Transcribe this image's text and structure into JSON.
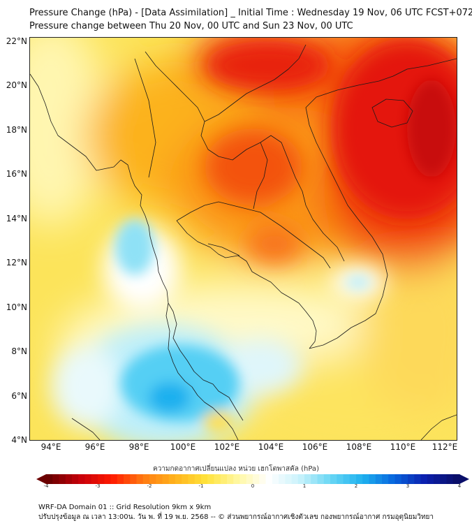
{
  "header": {
    "title_line1": "Pressure Change (hPa) - [Data Assimilation] _ Initial Time : Wednesday 19 Nov, 06 UTC FCST+072",
    "title_line2": "Pressure change between Thu 20 Nov, 00 UTC and Sun 23 Nov, 00 UTC"
  },
  "map": {
    "lat_labels": [
      "22°N",
      "20°N",
      "18°N",
      "16°N",
      "14°N",
      "12°N",
      "10°N",
      "8°N",
      "6°N",
      "4°N"
    ],
    "lon_labels": [
      "94°E",
      "96°E",
      "98°E",
      "100°E",
      "102°E",
      "104°E",
      "106°E",
      "108°E",
      "110°E",
      "112°E"
    ],
    "lat_range": [
      4,
      22.2
    ],
    "lon_range": [
      93,
      112.5
    ],
    "field_colors": {
      "strong_fall": "#e8100b",
      "moderate_fall": "#fb6a12",
      "weak_fall": "#fcc21a",
      "slight_fall": "#fbf067",
      "neutral": "#fffbd6",
      "slight_rise": "#aee9f7",
      "rise": "#2bc4f0"
    }
  },
  "colorbar": {
    "title": "ความกดอากาศเปลี่ยนแปลง หน่วย เฮกโตพาสคัล (hPa)",
    "tick_labels": [
      "-4",
      "-3",
      "-2",
      "-1",
      "0",
      "1",
      "2",
      "3",
      "4"
    ],
    "min": -4,
    "max": 4,
    "colors": [
      "#6b0000",
      "#c8000a",
      "#ff1a00",
      "#ff7b12",
      "#ffb21c",
      "#ffe23a",
      "#fff7a0",
      "#ffffff",
      "#c9f2fb",
      "#68d6f4",
      "#1fb2ef",
      "#0866de",
      "#0b1fae",
      "#0a0f6a"
    ]
  },
  "footer": {
    "line1": "WRF-DA Domain 01 :: Grid Resolution 9km x 9km",
    "line2": "ปรับปรุงข้อมูล ณ เวลา 13:00น. วัน พ. ที่ 19 พ.ย. 2568 -- © ส่วนพยากรณ์อากาศเชิงตัวเลข กองพยากรณ์อากาศ กรมอุตุนิยมวิทยา"
  }
}
